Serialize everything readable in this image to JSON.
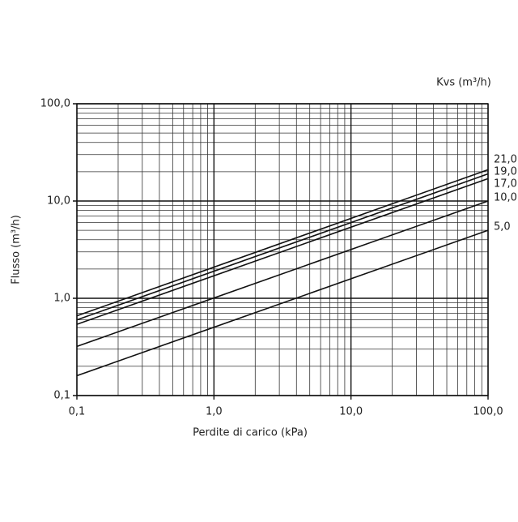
{
  "chart_data": {
    "type": "line",
    "log_x": true,
    "log_y": true,
    "grid": true,
    "ylabel": "Flusso (m³/h)",
    "xlabel": "Perdite di carico (kPa)",
    "legend_title": "Kvs (m³/h)",
    "x": [
      0.1,
      100
    ],
    "xlim": [
      0.1,
      100
    ],
    "ylim": [
      0.1,
      100
    ],
    "xticks": [
      {
        "value": 0.1,
        "label": "0,1"
      },
      {
        "value": 1,
        "label": "1,0"
      },
      {
        "value": 10,
        "label": "10,0"
      },
      {
        "value": 100,
        "label": "100,0"
      }
    ],
    "yticks": [
      {
        "value": 0.1,
        "label": "0,1"
      },
      {
        "value": 1,
        "label": "1,0"
      },
      {
        "value": 10,
        "label": "10,0"
      },
      {
        "value": 100,
        "label": "100,0"
      }
    ],
    "series": [
      {
        "name": "21,0",
        "color": "#111111",
        "values": [
          0.66,
          21
        ]
      },
      {
        "name": "19,0",
        "color": "#111111",
        "values": [
          0.6,
          19
        ]
      },
      {
        "name": "17,0",
        "color": "#111111",
        "values": [
          0.54,
          17
        ]
      },
      {
        "name": "10,0",
        "color": "#111111",
        "values": [
          0.32,
          10
        ]
      },
      {
        "name": "5,0",
        "color": "#111111",
        "values": [
          0.16,
          5
        ]
      }
    ]
  }
}
